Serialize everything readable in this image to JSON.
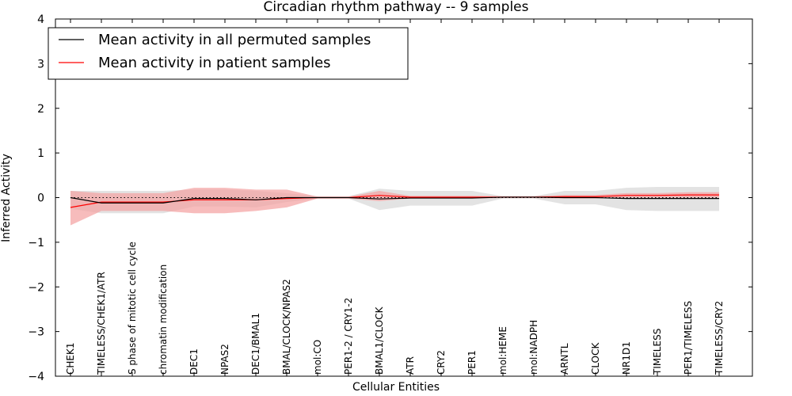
{
  "chart_data": {
    "type": "line",
    "title": "Circadian rhythm pathway -- 9 samples",
    "xlabel": "Cellular Entities",
    "ylabel": "Inferred Activity",
    "ylim": [
      -4,
      4
    ],
    "yticks": [
      -4,
      -3,
      -2,
      -1,
      0,
      1,
      2,
      3,
      4
    ],
    "ytick_labels": [
      "−4",
      "−3",
      "−2",
      "−1",
      "0",
      "1",
      "2",
      "3",
      "4"
    ],
    "grid": false,
    "legend_position": "top-left",
    "categories": [
      "CHEK1",
      "TIMELESS/CHEK1/ATR",
      "S phase of mitotic cell cycle",
      "chromatin modification",
      "DEC1",
      "NPAS2",
      "DEC1/BMAL1",
      "BMAL/CLOCK/NPAS2",
      "mol:CO",
      "PER1-2 / CRY1-2",
      "BMAL1/CLOCK",
      "ATR",
      "CRY2",
      "PER1",
      "mol:HEME",
      "mol:NADPH",
      "ARNTL",
      "CLOCK",
      "NR1D1",
      "TIMELESS",
      "PER1/TIMELESS",
      "TIMELESS/CRY2"
    ],
    "series": [
      {
        "name": "Mean activity in all permuted samples",
        "color": "#000000",
        "values": [
          0.0,
          -0.12,
          -0.12,
          -0.12,
          -0.02,
          -0.02,
          -0.05,
          0.0,
          0.0,
          0.0,
          -0.03,
          -0.01,
          -0.01,
          -0.01,
          0.01,
          0.01,
          0.0,
          0.0,
          -0.02,
          -0.02,
          -0.02,
          -0.02
        ],
        "band_lower": [
          -0.25,
          -0.35,
          -0.35,
          -0.35,
          -0.2,
          -0.2,
          -0.22,
          -0.1,
          -0.02,
          -0.02,
          -0.28,
          -0.18,
          -0.18,
          -0.18,
          -0.02,
          -0.02,
          -0.15,
          -0.15,
          -0.28,
          -0.3,
          -0.3,
          -0.3
        ],
        "band_upper": [
          0.15,
          0.15,
          0.15,
          0.15,
          0.18,
          0.18,
          0.15,
          0.1,
          0.03,
          0.03,
          0.2,
          0.15,
          0.15,
          0.15,
          0.03,
          0.03,
          0.15,
          0.15,
          0.22,
          0.24,
          0.24,
          0.24
        ]
      },
      {
        "name": "Mean activity in patient samples",
        "color": "#ff0000",
        "band_color": "#f4a0a0",
        "values": [
          -0.22,
          -0.1,
          -0.1,
          -0.1,
          -0.05,
          -0.05,
          -0.05,
          -0.02,
          0.0,
          0.0,
          0.05,
          0.01,
          0.01,
          0.01,
          0.01,
          0.01,
          0.02,
          0.02,
          0.05,
          0.05,
          0.06,
          0.06
        ],
        "band_lower": [
          -0.62,
          -0.3,
          -0.3,
          -0.3,
          -0.35,
          -0.35,
          -0.3,
          -0.22,
          -0.02,
          -0.02,
          -0.08,
          -0.02,
          -0.02,
          -0.02,
          -0.01,
          -0.01,
          -0.02,
          -0.02,
          0.0,
          0.0,
          0.0,
          0.0
        ],
        "band_upper": [
          0.15,
          0.1,
          0.1,
          0.1,
          0.22,
          0.22,
          0.18,
          0.18,
          0.02,
          0.02,
          0.15,
          0.04,
          0.04,
          0.04,
          0.03,
          0.03,
          0.06,
          0.06,
          0.1,
          0.1,
          0.12,
          0.12
        ]
      }
    ],
    "reference_line": {
      "style": "dotted",
      "color": "#000000",
      "y": 0.0
    }
  }
}
